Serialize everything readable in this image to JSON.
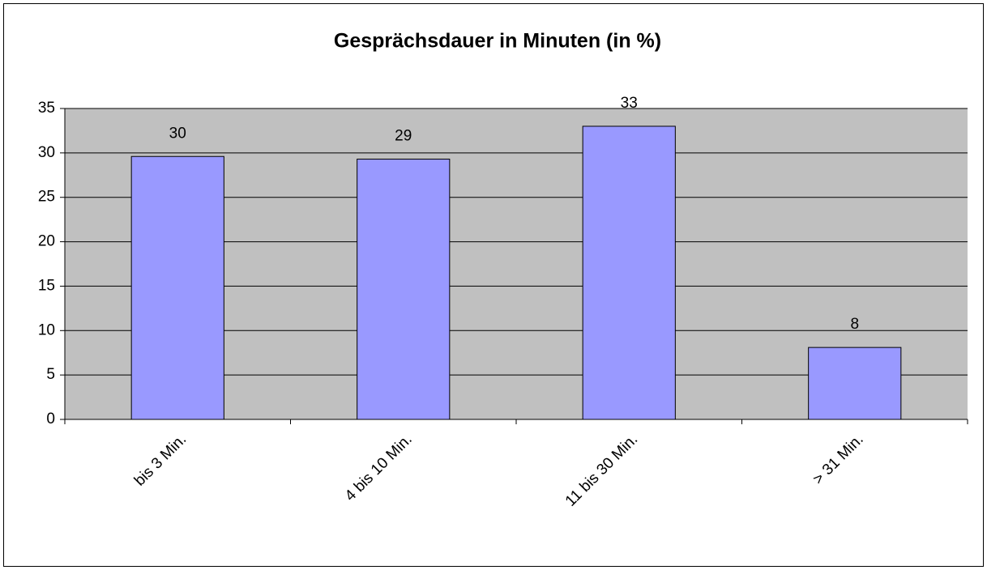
{
  "chart_data": {
    "type": "bar",
    "title": "Gesprächsdauer in Minuten (in %)",
    "categories": [
      "bis 3 Min.",
      "4 bis 10 Min.",
      "11 bis 30 Min.",
      "> 31 Min."
    ],
    "values": [
      29.6,
      29.3,
      33,
      8.1
    ],
    "value_labels": [
      "30",
      "29",
      "33",
      "8"
    ],
    "color": "#9999ff",
    "ylim": [
      0,
      35
    ],
    "yticks": [
      0,
      5,
      10,
      15,
      20,
      25,
      30,
      35
    ],
    "grid": true
  }
}
